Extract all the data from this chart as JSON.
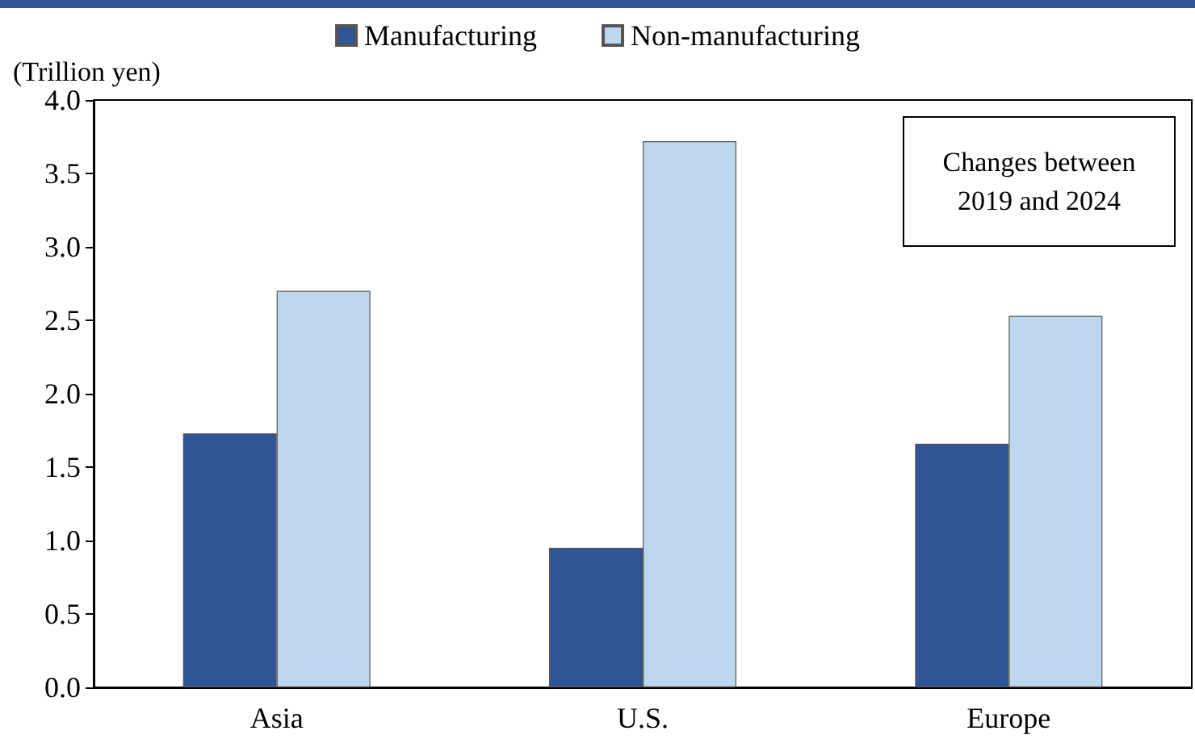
{
  "chart_data": {
    "type": "bar",
    "ylabel": "(Trillion yen)",
    "annotations": [
      "Changes between\n2019 and 2024"
    ],
    "categories": [
      "Asia",
      "U.S.",
      "Europe"
    ],
    "series": [
      {
        "name": "Manufacturing",
        "color": "#2f5597",
        "values": [
          1.73,
          0.95,
          1.66
        ]
      },
      {
        "name": "Non-manufacturing",
        "color": "#bdd7ee",
        "values": [
          2.7,
          3.72,
          2.53
        ]
      }
    ],
    "ylim": [
      0,
      4.0
    ],
    "yticks": [
      {
        "value": 0,
        "label": "0.0"
      },
      {
        "value": 0.5,
        "label": "0.5"
      },
      {
        "value": 1,
        "label": "1.0"
      },
      {
        "value": 1.5,
        "label": "1.5"
      },
      {
        "value": 2,
        "label": "2.0"
      },
      {
        "value": 2.5,
        "label": "2.5"
      },
      {
        "value": 3,
        "label": "3.0"
      },
      {
        "value": 3.5,
        "label": "3.5"
      },
      {
        "value": 4,
        "label": "4.0"
      }
    ],
    "grid": false,
    "legend": "top"
  }
}
